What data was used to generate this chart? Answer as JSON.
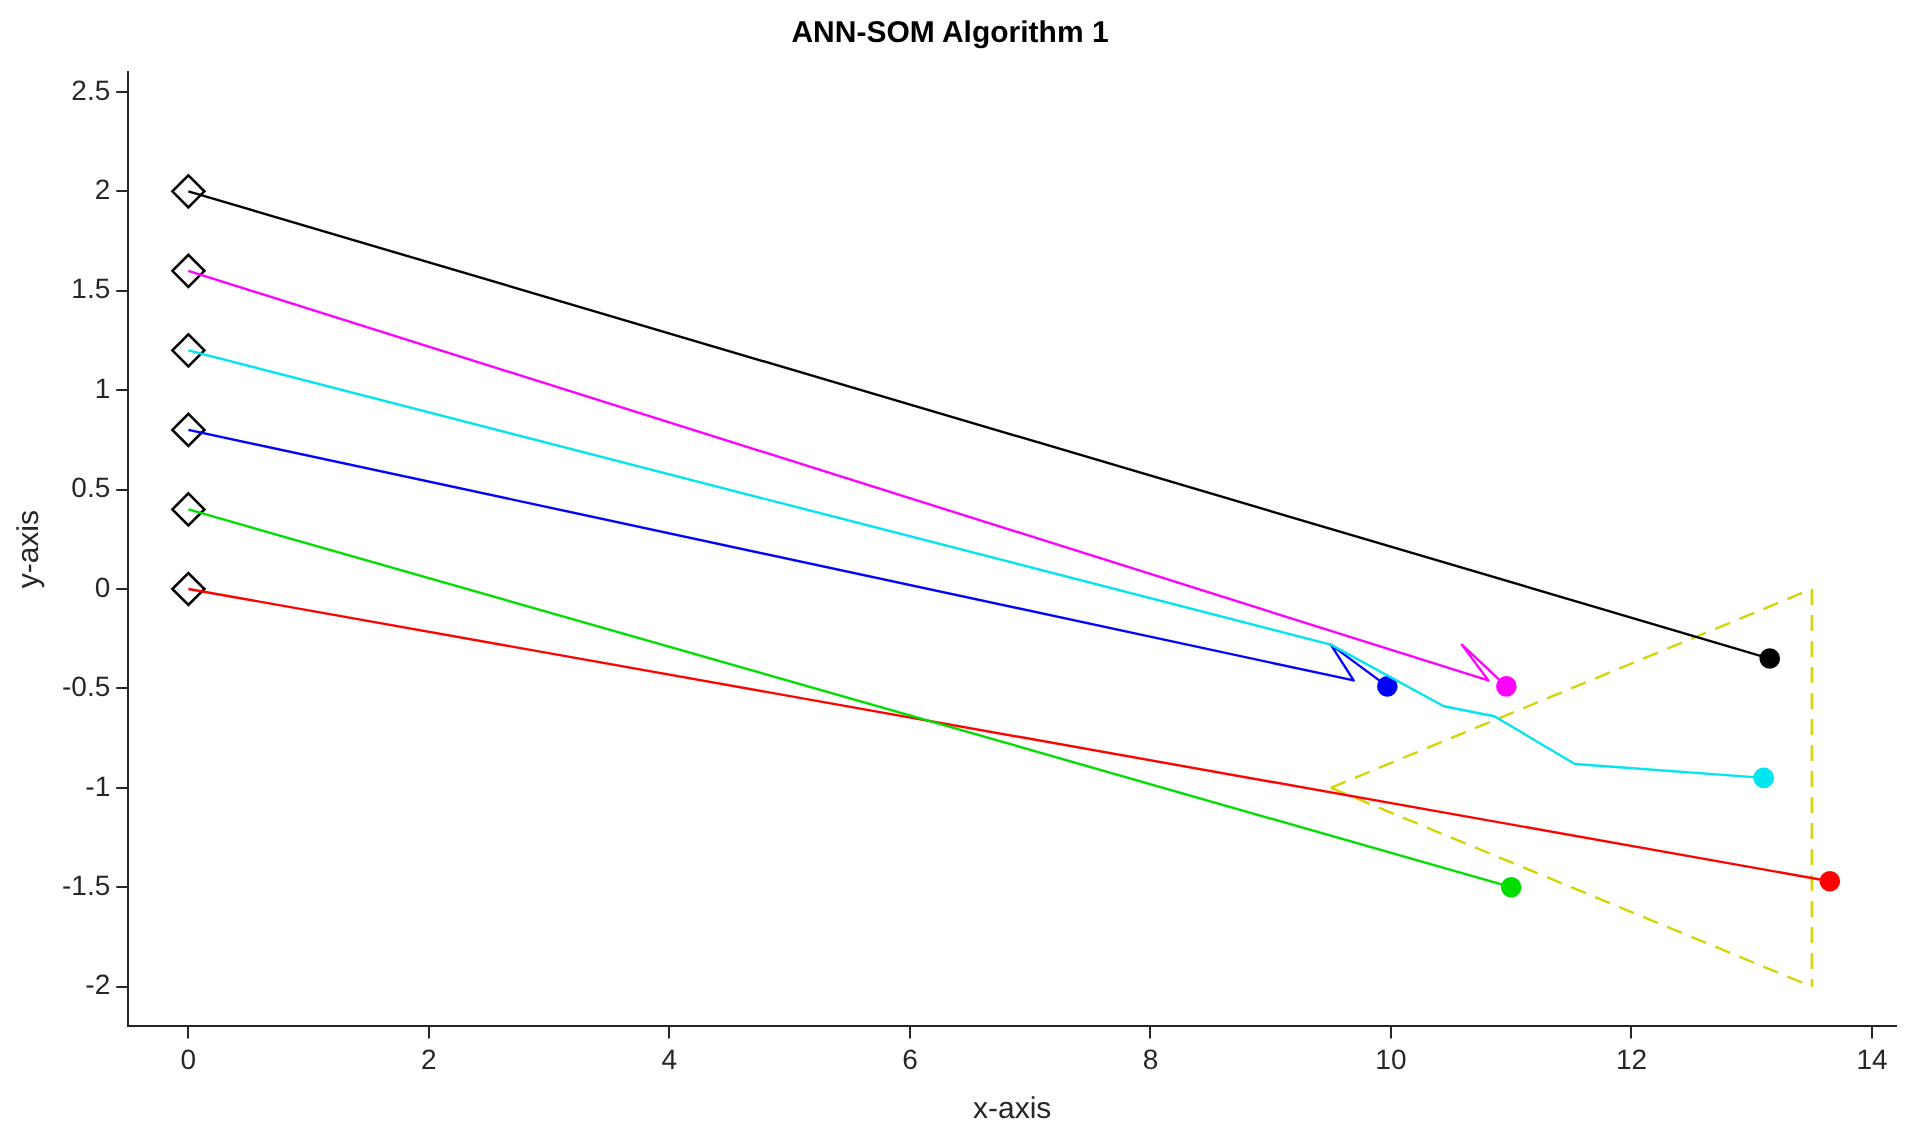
{
  "chart_data": {
    "type": "line",
    "title": "ANN-SOM Algorithm 1",
    "xlabel": "x-axis",
    "ylabel": "y-axis",
    "xlim": [
      -0.5,
      14.2
    ],
    "ylim": [
      -2.2,
      2.6
    ],
    "xticks": [
      0,
      2,
      4,
      6,
      8,
      10,
      12,
      14
    ],
    "yticks": [
      -2,
      -1.5,
      -1,
      -0.5,
      0,
      0.5,
      1,
      1.5,
      2,
      2.5
    ],
    "grid": false,
    "legend": false,
    "marker": "none",
    "line_style": "solid",
    "series": [
      {
        "color": "#000000",
        "x": [
          0,
          13.15
        ],
        "values": [
          2,
          -0.35
        ]
      },
      {
        "color": "#ff00ff",
        "x": [
          0,
          10.81,
          10.59,
          10.96
        ],
        "values": [
          1.6,
          -0.46,
          -0.28,
          -0.49
        ]
      },
      {
        "color": "#00e5ee",
        "x": [
          0,
          9.5,
          10.44,
          10.86,
          11.53,
          13.1
        ],
        "values": [
          1.2,
          -0.28,
          -0.59,
          -0.64,
          -0.88,
          -0.95
        ]
      },
      {
        "color": "#0000ff",
        "x": [
          0,
          9.69,
          9.5,
          9.97
        ],
        "values": [
          0.8,
          -0.46,
          -0.28,
          -0.49
        ]
      },
      {
        "color": "#00dd00",
        "x": [
          0,
          11
        ],
        "values": [
          0.4,
          -1.5
        ]
      },
      {
        "color": "#ff0000",
        "x": [
          0,
          13.65
        ],
        "values": [
          0,
          -1.47
        ]
      },
      {
        "color": "#d4d400",
        "line_style": "dashed",
        "x": [
          9.5,
          13.5
        ],
        "values": [
          -1,
          0
        ]
      },
      {
        "color": "#d4d400",
        "line_style": "dashed",
        "x": [
          9.5,
          13.5
        ],
        "values": [
          -1,
          -2
        ]
      },
      {
        "color": "#d4d400",
        "line_style": "dashed",
        "x": [
          13.5,
          13.5
        ],
        "values": [
          0,
          -2
        ]
      },
      {
        "type": "scatter",
        "marker": "diamond",
        "color": "#000000",
        "x": [
          0,
          0,
          0,
          0,
          0,
          0
        ],
        "values": [
          2,
          1.6,
          1.2,
          0.8,
          0.4,
          0
        ]
      },
      {
        "type": "scatter",
        "marker": "circle",
        "colors": [
          "#000000",
          "#ff00ff",
          "#00e5ee",
          "#0000ff",
          "#00dd00",
          "#ff0000"
        ],
        "x": [
          13.15,
          10.96,
          13.1,
          9.97,
          11,
          13.65
        ],
        "values": [
          -0.35,
          -0.49,
          -0.95,
          -0.49,
          -1.5,
          -1.47
        ]
      }
    ]
  }
}
